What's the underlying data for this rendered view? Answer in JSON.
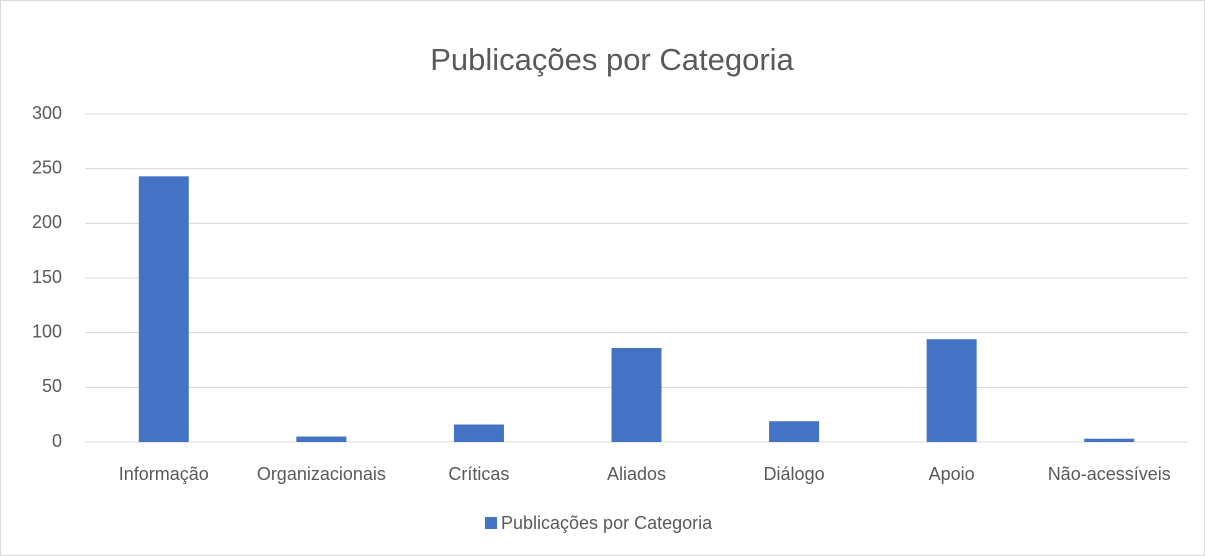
{
  "chart_data": {
    "type": "bar",
    "title": "Publicações por Categoria",
    "categories": [
      "Informação",
      "Organizacionais",
      "Críticas",
      "Aliados",
      "Diálogo",
      "Apoio",
      "Não-acessíveis"
    ],
    "series": [
      {
        "name": "Publicações por Categoria",
        "color": "#4472c4",
        "values": [
          243,
          5,
          16,
          86,
          19,
          94,
          3
        ]
      }
    ],
    "ylim": [
      0,
      300
    ],
    "yticks": [
      0,
      50,
      100,
      150,
      200,
      250,
      300
    ],
    "grid": true,
    "legend": "bottom"
  }
}
